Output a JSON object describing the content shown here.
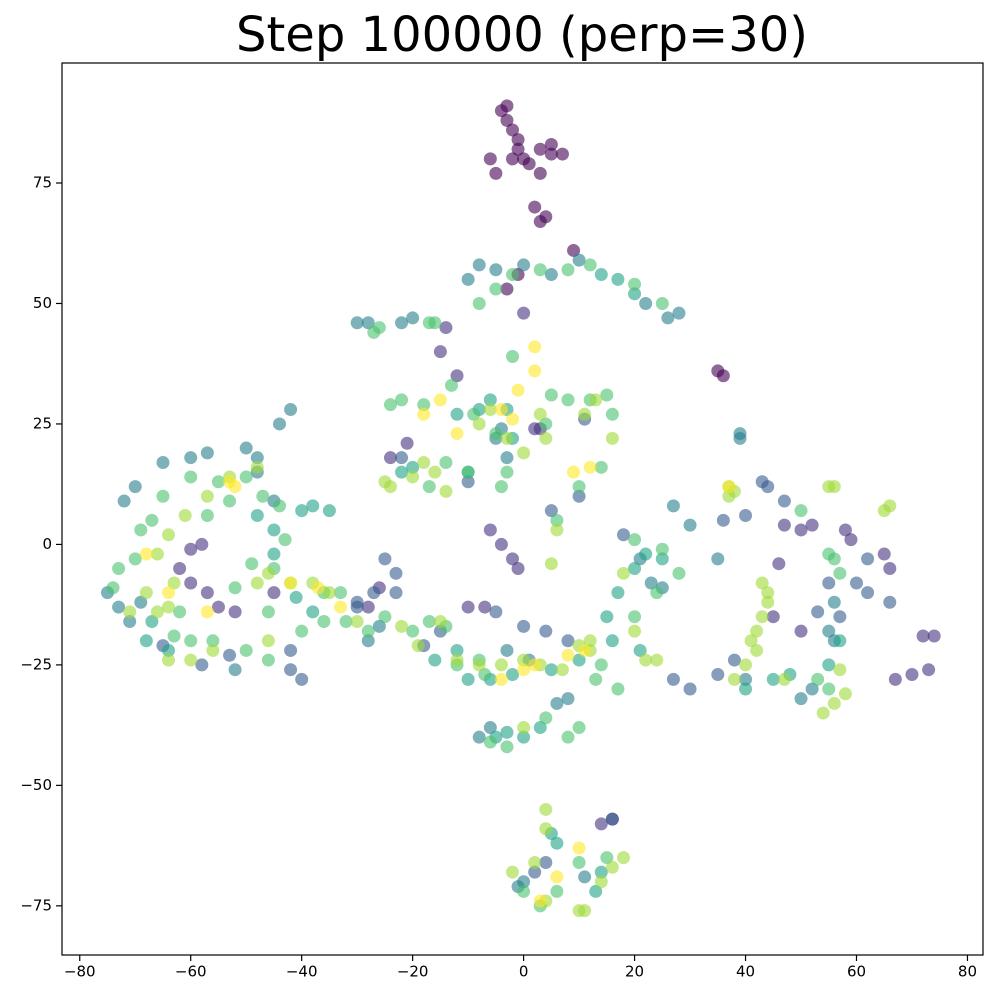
{
  "chart_data": {
    "type": "scatter",
    "title": "Step 100000 (perp=30)",
    "xlim": [
      -83.2,
      82.8
    ],
    "ylim": [
      -85.2,
      99.9
    ],
    "xticks": [
      {
        "value": -80,
        "label": "−80"
      },
      {
        "value": -60,
        "label": "−60"
      },
      {
        "value": -40,
        "label": "−40"
      },
      {
        "value": -20,
        "label": "−20"
      },
      0,
      20,
      40,
      60,
      80
    ],
    "yticks": [
      {
        "value": -75,
        "label": "−75"
      },
      {
        "value": -50,
        "label": "−50"
      },
      {
        "value": -25,
        "label": "−25"
      },
      0,
      25,
      50,
      75
    ],
    "alpha": 0.6,
    "series": [
      {
        "color": "#440154",
        "x": [
          -4,
          -3,
          -2,
          -1,
          -6,
          -5,
          -2,
          1,
          3,
          5,
          7,
          3,
          2,
          3,
          4,
          -3,
          -1,
          35,
          36,
          9,
          -3,
          -1,
          0,
          5
        ],
        "values": [
          90,
          88,
          86,
          84,
          80,
          77,
          80,
          79,
          82,
          81,
          81,
          77,
          70,
          67,
          68,
          53,
          56,
          36,
          35,
          61,
          91,
          82,
          80,
          83
        ]
      },
      {
        "color": "#46327e",
        "x": [
          -60,
          -58,
          -62,
          -60,
          -57,
          -55,
          -52,
          -45,
          -26,
          -28,
          -24,
          -21,
          -10,
          -7,
          -6,
          -4,
          -2,
          -1,
          2,
          3,
          0,
          -14,
          -15,
          -12,
          47,
          50,
          52,
          58,
          59,
          65,
          66,
          45,
          50,
          67,
          70,
          72,
          74,
          73,
          14,
          16,
          46
        ],
        "values": [
          -1,
          0,
          -5,
          -8,
          -10,
          -13,
          -14,
          -10,
          -9,
          -13,
          18,
          21,
          -13,
          -13,
          3,
          0,
          -3,
          -5,
          24,
          24,
          48,
          45,
          40,
          35,
          4,
          3,
          4,
          3,
          1,
          -2,
          -5,
          -15,
          -18,
          -28,
          -27,
          -19,
          -19,
          -26,
          -58,
          -57,
          -4
        ]
      },
      {
        "color": "#365c8d",
        "x": [
          -42,
          -40,
          -42,
          -25,
          -23,
          -23,
          -27,
          -30,
          -18,
          -15,
          -5,
          0,
          4,
          8,
          16,
          -30,
          5,
          10,
          11,
          18,
          27,
          30,
          35,
          38,
          55,
          57,
          53,
          60,
          62,
          66,
          62,
          36,
          40,
          43,
          44,
          47,
          -53,
          -58,
          -65,
          -22,
          -10,
          2,
          4
        ],
        "values": [
          -26,
          -28,
          -22,
          -3,
          -6,
          -10,
          -10,
          -12,
          -21,
          -18,
          -14,
          -17,
          -18,
          -20,
          -57,
          -13,
          7,
          10,
          26,
          2,
          -28,
          -30,
          -27,
          -24,
          -8,
          -15,
          -14,
          -8,
          -10,
          -12,
          -3,
          5,
          6,
          13,
          12,
          9,
          -23,
          -25,
          -21,
          18,
          13,
          -68,
          -66
        ]
      },
      {
        "color": "#277f8e",
        "x": [
          -75,
          -73,
          -71,
          -69,
          -72,
          -70,
          -65,
          -60,
          -57,
          -50,
          -48,
          -48,
          -45,
          -42,
          -44,
          -30,
          -28,
          -22,
          -20,
          -10,
          -8,
          -5,
          0,
          5,
          10,
          28,
          26,
          22,
          39,
          39,
          -4,
          -5,
          -3,
          6,
          8,
          -8,
          -6,
          40,
          56,
          55,
          56,
          50,
          52,
          11,
          0,
          -1,
          -28,
          -26,
          21,
          23,
          25,
          30,
          27,
          35,
          -52,
          -3,
          1
        ],
        "values": [
          -10,
          -13,
          -16,
          -12,
          9,
          12,
          17,
          18,
          19,
          20,
          15,
          18,
          9,
          28,
          25,
          46,
          46,
          46,
          47,
          55,
          58,
          57,
          58,
          56,
          59,
          48,
          47,
          50,
          22,
          23,
          24,
          22,
          18,
          -33,
          -32,
          -40,
          -38,
          -28,
          -12,
          -18,
          -20,
          -32,
          -30,
          -69,
          -70,
          -71,
          -20,
          -17,
          -3,
          -8,
          -9,
          4,
          8,
          -3,
          -26,
          -22,
          -24
        ]
      },
      {
        "color": "#1fa187",
        "x": [
          -64,
          -67,
          -68,
          -48,
          -45,
          -40,
          -38,
          -35,
          -45,
          -41,
          -38,
          -22,
          -20,
          -16,
          -12,
          -10,
          -6,
          -2,
          5,
          10,
          16,
          21,
          -5,
          -3,
          0,
          3,
          20,
          22,
          25,
          55,
          57,
          14,
          17,
          20,
          -12,
          -8,
          -6,
          -3,
          -2,
          -10,
          40,
          45,
          48,
          17,
          15,
          5,
          6,
          13,
          14
        ],
        "values": [
          -22,
          -16,
          -20,
          6,
          3,
          7,
          8,
          7,
          -2,
          -11,
          -14,
          15,
          16,
          -24,
          -22,
          -28,
          -28,
          -27,
          -26,
          -24,
          -20,
          -22,
          -40,
          -39,
          -40,
          -38,
          -5,
          -2,
          -3,
          -25,
          -20,
          56,
          55,
          52,
          27,
          28,
          30,
          28,
          22,
          15,
          -30,
          -28,
          -27,
          -10,
          -15,
          -60,
          -62,
          -72,
          -68
        ]
      },
      {
        "color": "#4ac16d",
        "x": [
          -74,
          -73,
          -70,
          -69,
          -67,
          -65,
          -60,
          -55,
          -50,
          -47,
          -44,
          -43,
          -36,
          -33,
          -32,
          -28,
          -25,
          -20,
          -17,
          -14,
          -12,
          -8,
          -7,
          -24,
          -22,
          -18,
          -17,
          -14,
          -10,
          -26,
          -27,
          -17,
          -16,
          -8,
          -5,
          -2,
          3,
          8,
          12,
          20,
          25,
          -13,
          -9,
          -5,
          -2,
          4,
          5,
          8,
          12,
          15,
          16,
          6,
          10,
          14,
          20,
          25,
          28,
          13,
          14,
          20,
          24,
          17,
          50,
          55,
          56,
          57,
          8,
          10,
          4,
          -3,
          -6,
          53,
          55,
          -62,
          -63,
          -60,
          -56,
          -50,
          -46,
          -40,
          -36,
          -52,
          -49,
          -46,
          6,
          0,
          3,
          10,
          15,
          -57,
          -53,
          -45,
          -3,
          -4
        ],
        "values": [
          -9,
          -5,
          -3,
          3,
          5,
          10,
          14,
          13,
          14,
          10,
          8,
          1,
          -10,
          -10,
          -16,
          -18,
          -15,
          -18,
          -16,
          -17,
          -25,
          -24,
          -27,
          29,
          30,
          29,
          12,
          17,
          15,
          45,
          44,
          46,
          46,
          50,
          53,
          56,
          57,
          57,
          58,
          54,
          50,
          33,
          27,
          23,
          39,
          25,
          31,
          30,
          30,
          31,
          27,
          5,
          12,
          16,
          1,
          -1,
          -6,
          -28,
          -25,
          -15,
          -10,
          -30,
          7,
          -2,
          -3,
          -6,
          -40,
          -38,
          -36,
          -42,
          -41,
          -28,
          -30,
          -14,
          -19,
          -20,
          -20,
          -22,
          -24,
          -18,
          -16,
          -9,
          -4,
          -14,
          -72,
          -72,
          -75,
          -66,
          -65,
          6,
          9,
          -5,
          15,
          12
        ]
      },
      {
        "color": "#a0da39",
        "x": [
          -71,
          -68,
          -66,
          -64,
          -63,
          -66,
          -64,
          -61,
          -57,
          -53,
          -48,
          -48,
          -46,
          -42,
          -38,
          -35,
          -30,
          -22,
          -19,
          -15,
          -12,
          -8,
          -4,
          0,
          3,
          7,
          -25,
          -24,
          -20,
          -18,
          -16,
          -14,
          -8,
          -6,
          -3,
          0,
          3,
          4,
          5,
          6,
          11,
          13,
          16,
          10,
          12,
          22,
          24,
          37,
          38,
          37,
          43,
          44,
          44,
          43,
          42,
          41,
          42,
          40,
          38,
          47,
          54,
          56,
          58,
          57,
          55,
          56,
          65,
          66,
          -2,
          2,
          4,
          10,
          11,
          14,
          16,
          18,
          4,
          4,
          -64,
          -60,
          -56,
          -46,
          0,
          20,
          18,
          12
        ],
        "values": [
          -14,
          -10,
          -14,
          -13,
          -8,
          -2,
          2,
          6,
          10,
          14,
          16,
          -8,
          -6,
          -8,
          -8,
          -10,
          -16,
          -17,
          -21,
          -16,
          -24,
          -25,
          -25,
          -24,
          -25,
          -26,
          13,
          12,
          14,
          17,
          15,
          11,
          25,
          28,
          22,
          19,
          27,
          22,
          -4,
          3,
          27,
          30,
          22,
          -21,
          -22,
          -24,
          -24,
          12,
          11,
          10,
          -8,
          -10,
          -12,
          -15,
          -18,
          -20,
          -22,
          -25,
          -28,
          -28,
          -35,
          -33,
          -31,
          -26,
          12,
          12,
          7,
          8,
          -68,
          -66,
          -74,
          -76,
          -76,
          -70,
          -67,
          -65,
          -59,
          -55,
          -24,
          -24,
          -22,
          -20,
          -38,
          -18,
          -6,
          -20
        ]
      },
      {
        "color": "#fde725",
        "x": [
          -68,
          -64,
          -57,
          -53,
          -52,
          -42,
          -37,
          -18,
          -15,
          -12,
          -4,
          -2,
          2,
          2,
          -1,
          9,
          12,
          0,
          -4,
          8,
          11,
          37,
          3,
          6,
          10,
          -33,
          2
        ],
        "values": [
          -2,
          -10,
          -14,
          13,
          12,
          -8,
          -9,
          27,
          30,
          23,
          28,
          26,
          41,
          36,
          32,
          15,
          16,
          -26,
          -28,
          -23,
          -22,
          12,
          -74,
          -69,
          -63,
          -13,
          -25
        ]
      }
    ]
  }
}
